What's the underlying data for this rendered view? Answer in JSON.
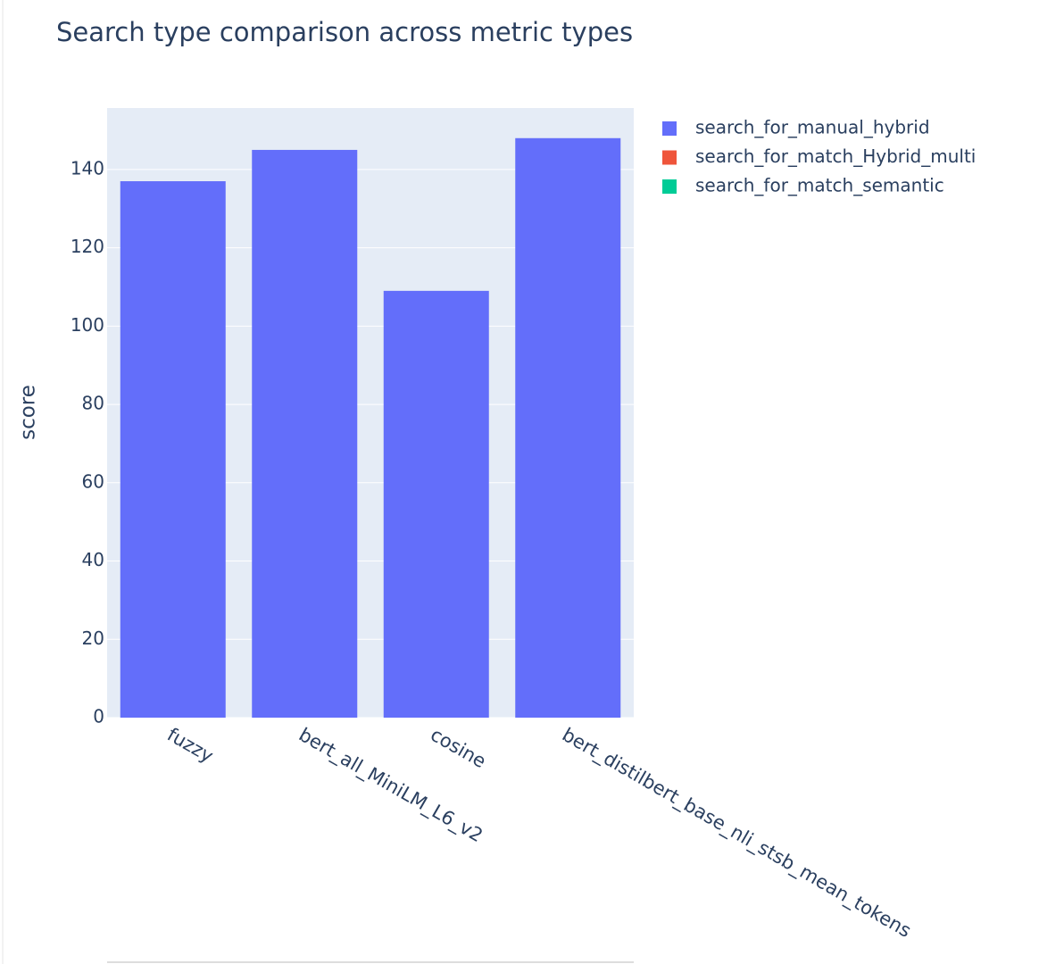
{
  "chart_data": {
    "type": "bar",
    "title": "Search type comparison across metric types",
    "categories": [
      "fuzzy",
      "bert_all_MiniLM_L6_v2",
      "cosine",
      "bert_distilbert_base_nli_stsb_mean_tokens"
    ],
    "series": [
      {
        "name": "search_for_manual_hybrid",
        "color": "#636efa",
        "values": [
          137,
          145,
          109,
          148
        ]
      },
      {
        "name": "search_for_match_Hybrid_multi",
        "color": "#ef553b",
        "values": [
          null,
          null,
          null,
          null
        ]
      },
      {
        "name": "search_for_match_semantic",
        "color": "#00cc96",
        "values": [
          null,
          null,
          null,
          null
        ]
      }
    ],
    "ylabel": "score",
    "ylim": [
      0,
      155.7
    ],
    "yticks": [
      0,
      20,
      40,
      60,
      80,
      100,
      120,
      140
    ],
    "grid": true,
    "legend": "right"
  }
}
